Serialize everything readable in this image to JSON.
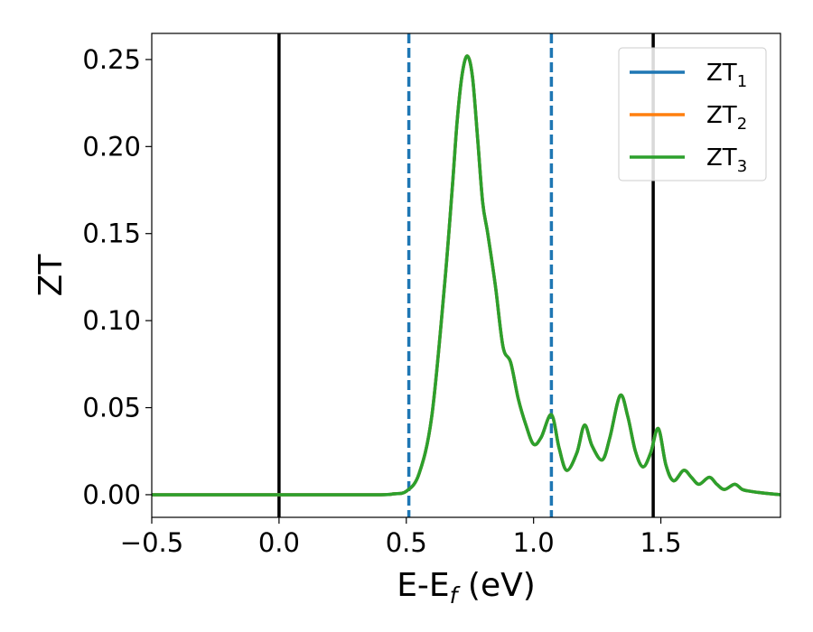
{
  "chart_data": {
    "type": "line",
    "title": "",
    "xlabel": "E-E",
    "xlabel_sub": "f",
    "xlabel_unit": " (eV)",
    "ylabel": "ZT",
    "xlim": [
      -0.5,
      1.97
    ],
    "ylim": [
      -0.013,
      0.265
    ],
    "grid": false,
    "legend_position": "top-right",
    "x_ticks": [
      {
        "value": -0.5,
        "label": "−0.5"
      },
      {
        "value": 0.0,
        "label": "0.0"
      },
      {
        "value": 0.5,
        "label": "0.5"
      },
      {
        "value": 1.0,
        "label": "1.0"
      },
      {
        "value": 1.5,
        "label": "1.5"
      }
    ],
    "y_ticks": [
      {
        "value": 0.0,
        "label": "0.00"
      },
      {
        "value": 0.05,
        "label": "0.05"
      },
      {
        "value": 0.1,
        "label": "0.10"
      },
      {
        "value": 0.15,
        "label": "0.15"
      },
      {
        "value": 0.2,
        "label": "0.20"
      },
      {
        "value": 0.25,
        "label": "0.25"
      }
    ],
    "vertical_lines": [
      {
        "x": 0.0,
        "style": "solid",
        "color": "#000000"
      },
      {
        "x": 1.47,
        "style": "solid",
        "color": "#000000"
      },
      {
        "x": 0.51,
        "style": "dashed",
        "color": "#1f77b4"
      },
      {
        "x": 1.07,
        "style": "dashed",
        "color": "#1f77b4"
      }
    ],
    "series": [
      {
        "name": "ZT",
        "subscript": "1",
        "color": "#1f77b4"
      },
      {
        "name": "ZT",
        "subscript": "2",
        "color": "#ff7f0e"
      },
      {
        "name": "ZT",
        "subscript": "3",
        "color": "#2ca02c"
      }
    ],
    "curve": {
      "note_series_overlap": "all three series coincide; only ZT3 visible",
      "x": [
        -0.5,
        -0.2,
        0.0,
        0.2,
        0.4,
        0.45,
        0.5,
        0.55,
        0.6,
        0.65,
        0.68,
        0.7,
        0.72,
        0.74,
        0.76,
        0.78,
        0.8,
        0.82,
        0.85,
        0.88,
        0.91,
        0.94,
        0.97,
        1.0,
        1.03,
        1.07,
        1.1,
        1.13,
        1.17,
        1.2,
        1.23,
        1.27,
        1.3,
        1.34,
        1.37,
        1.4,
        1.43,
        1.46,
        1.49,
        1.52,
        1.55,
        1.59,
        1.62,
        1.65,
        1.69,
        1.72,
        1.75,
        1.79,
        1.82,
        1.85,
        1.9,
        1.97
      ],
      "y": [
        0.0,
        0.0,
        0.0,
        0.0,
        0.0,
        0.0005,
        0.002,
        0.012,
        0.045,
        0.12,
        0.175,
        0.215,
        0.242,
        0.252,
        0.24,
        0.205,
        0.168,
        0.15,
        0.12,
        0.085,
        0.076,
        0.055,
        0.04,
        0.029,
        0.033,
        0.046,
        0.027,
        0.014,
        0.024,
        0.04,
        0.028,
        0.02,
        0.033,
        0.057,
        0.045,
        0.025,
        0.016,
        0.024,
        0.038,
        0.017,
        0.008,
        0.014,
        0.01,
        0.006,
        0.01,
        0.006,
        0.003,
        0.006,
        0.003,
        0.002,
        0.001,
        0.0
      ]
    }
  }
}
